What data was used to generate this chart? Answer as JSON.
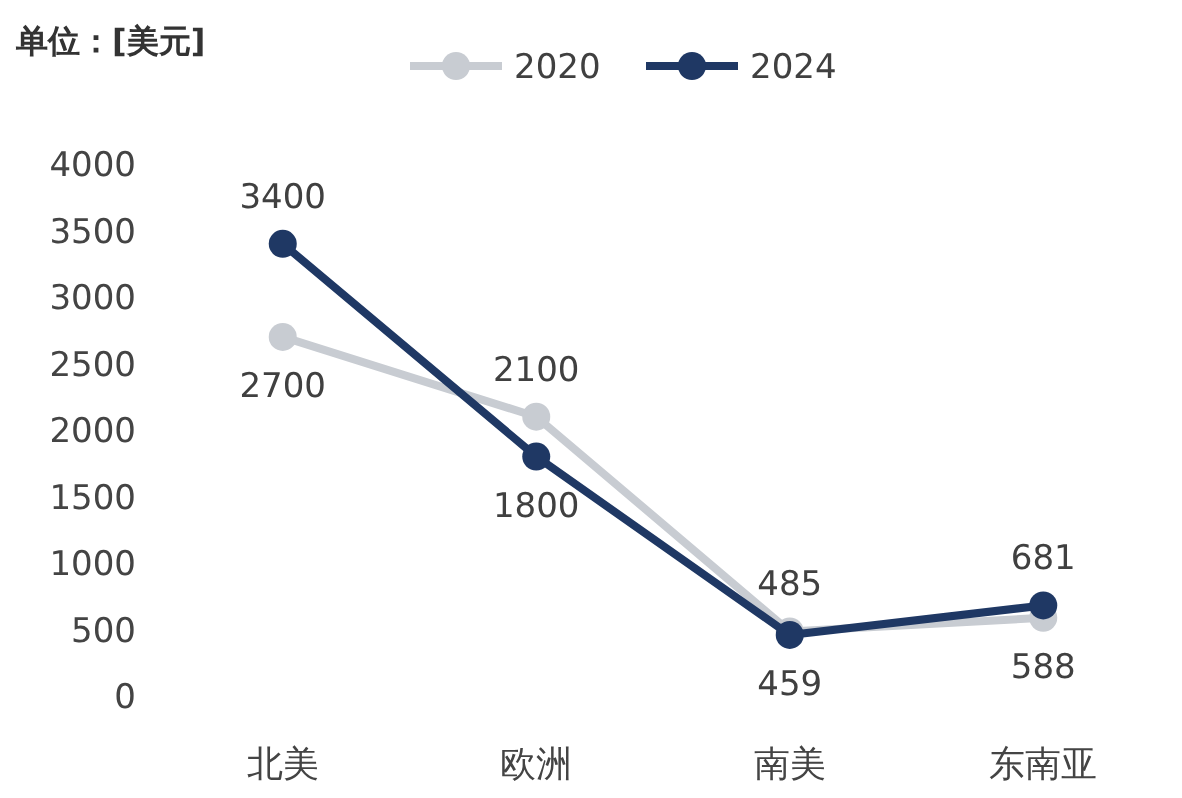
{
  "chart_data": {
    "type": "line",
    "ylabel": "单位：[美元]",
    "categories": [
      "北美",
      "欧洲",
      "南美",
      "东南亚"
    ],
    "series": [
      {
        "name": "2020",
        "color": "#c8ccd2",
        "values": [
          2700,
          2100,
          485,
          588
        ]
      },
      {
        "name": "2024",
        "color": "#1f3864",
        "values": [
          3400,
          1800,
          459,
          681
        ]
      }
    ],
    "ylim": [
      0,
      4000
    ],
    "yticks": [
      0,
      500,
      1000,
      1500,
      2000,
      2500,
      3000,
      3500,
      4000
    ],
    "grid": false,
    "legend": "top",
    "marker": "circle",
    "data_labels": true
  }
}
